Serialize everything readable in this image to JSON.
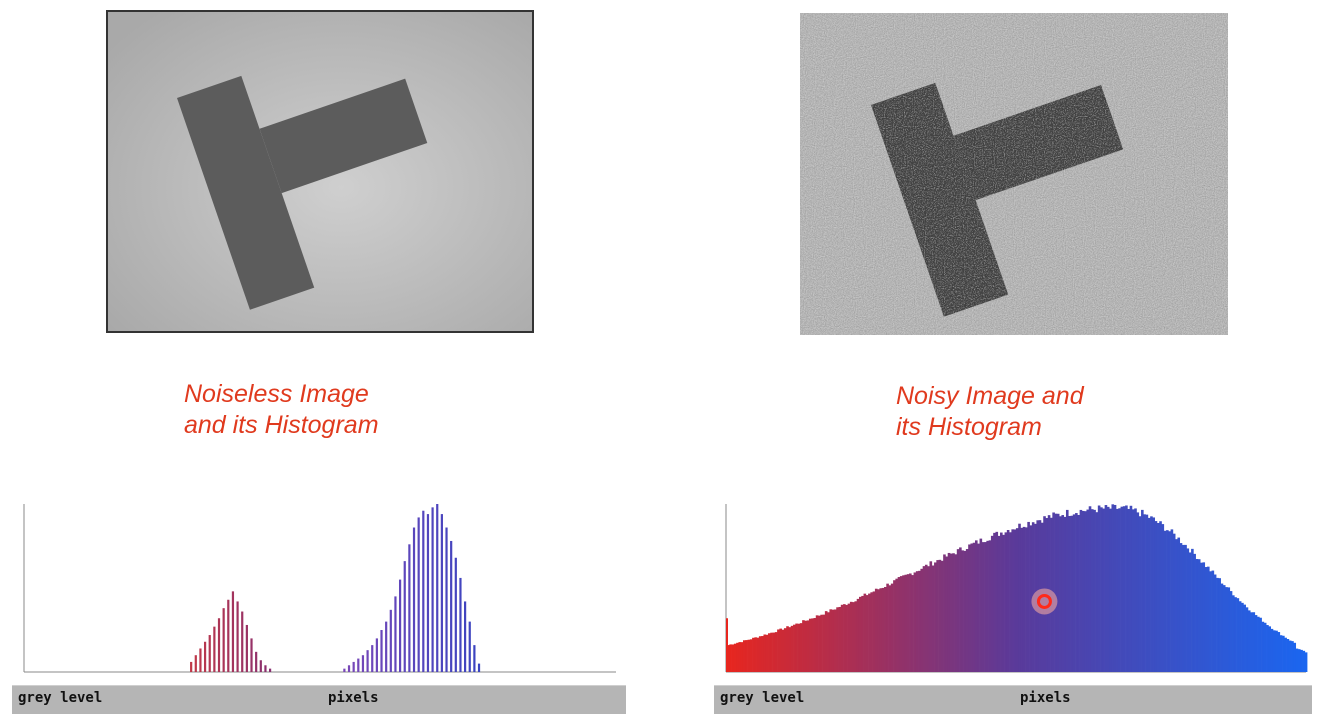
{
  "left_panel": {
    "caption_line1": "Noiseless Image",
    "caption_line2": "and its Histogram",
    "xlabel": "grey level",
    "ylabel": "pixels"
  },
  "right_panel": {
    "caption_line1": "Noisy Image and",
    "caption_line2": "its Histogram",
    "xlabel": "grey level",
    "ylabel": "pixels"
  },
  "colors": {
    "caption": "#e03a1e",
    "hist_dark": "#b03040",
    "hist_light": "#5048b0",
    "grad_start": "#e8261e",
    "grad_mid": "#5a3a9a",
    "grad_end": "#1a66f0",
    "strip_bg": "#b5b5b5"
  },
  "chart_data": [
    {
      "type": "bar",
      "xlabel": "grey level",
      "ylabel": "pixels",
      "xlim": [
        0,
        255
      ],
      "ylim": [
        0,
        1
      ],
      "series": [
        {
          "x": [
            72,
            74,
            76,
            78,
            80,
            82,
            84,
            86,
            88,
            90,
            92,
            94,
            96,
            98,
            100,
            102,
            104,
            106
          ],
          "values": [
            0.06,
            0.1,
            0.14,
            0.18,
            0.22,
            0.27,
            0.32,
            0.38,
            0.43,
            0.48,
            0.42,
            0.36,
            0.28,
            0.2,
            0.12,
            0.07,
            0.04,
            0.02
          ]
        },
        {
          "x": [
            138,
            140,
            142,
            144,
            146,
            148,
            150,
            152,
            154,
            156,
            158,
            160,
            162,
            164,
            166,
            168,
            170,
            172,
            174,
            176,
            178,
            180,
            182,
            184,
            186,
            188,
            190,
            192,
            194,
            196
          ],
          "values": [
            0.02,
            0.04,
            0.06,
            0.08,
            0.1,
            0.13,
            0.16,
            0.2,
            0.25,
            0.3,
            0.37,
            0.45,
            0.55,
            0.66,
            0.76,
            0.86,
            0.92,
            0.96,
            0.94,
            0.98,
            1.0,
            0.94,
            0.86,
            0.78,
            0.68,
            0.56,
            0.42,
            0.3,
            0.16,
            0.05
          ]
        }
      ]
    },
    {
      "type": "bar",
      "xlabel": "grey level",
      "ylabel": "pixels",
      "xlim": [
        0,
        255
      ],
      "ylim": [
        0,
        1
      ],
      "spike": {
        "x": 0,
        "value": 0.32
      },
      "peak_x": 172,
      "peak_value": 1.0,
      "left_spread": 90,
      "right_spread": 42,
      "marker": {
        "x": 140,
        "value": 0.42
      }
    }
  ]
}
